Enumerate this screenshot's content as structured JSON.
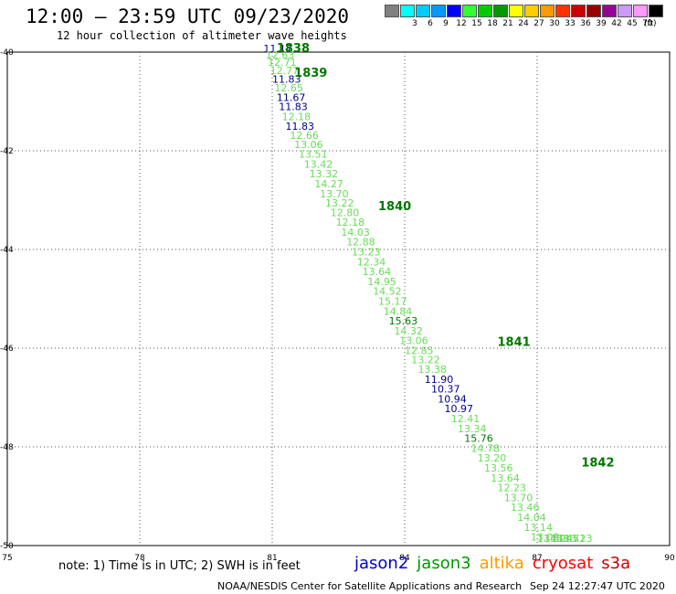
{
  "header": {
    "title": "12:00 – 23:59 UTC 09/23/2020",
    "subtitle": "12 hour collection of altimeter wave heights"
  },
  "colorbar": {
    "unit": "(ft)",
    "bins": [
      {
        "color": "#808080",
        "label": ""
      },
      {
        "color": "#00ffff",
        "label": "3"
      },
      {
        "color": "#00ccff",
        "label": "6"
      },
      {
        "color": "#0099ff",
        "label": "9"
      },
      {
        "color": "#0000ff",
        "label": "12"
      },
      {
        "color": "#33ff33",
        "label": "15"
      },
      {
        "color": "#00cc00",
        "label": "18"
      },
      {
        "color": "#009900",
        "label": "21"
      },
      {
        "color": "#ffff00",
        "label": "24"
      },
      {
        "color": "#ffcc00",
        "label": "27"
      },
      {
        "color": "#ff9900",
        "label": "30"
      },
      {
        "color": "#ff3300",
        "label": "33"
      },
      {
        "color": "#cc0000",
        "label": "36"
      },
      {
        "color": "#990000",
        "label": "39"
      },
      {
        "color": "#990099",
        "label": "42"
      },
      {
        "color": "#cc99ff",
        "label": "45"
      },
      {
        "color": "#ff99ff",
        "label": "70"
      },
      {
        "color": "#000000",
        "label": ""
      }
    ]
  },
  "chart_data": {
    "type": "scatter",
    "title": "12:00 – 23:59 UTC 09/23/2020",
    "subtitle": "12 hour collection of altimeter wave heights",
    "xlim": [
      75,
      90
    ],
    "ylim": [
      -50,
      -40
    ],
    "xticks": [
      75,
      78,
      81,
      84,
      87,
      90
    ],
    "yticks": [
      -40,
      -42,
      -44,
      -46,
      -48,
      -50
    ],
    "grid": true,
    "colors": {
      "jason2": "#00008b",
      "jason3_light": "#66dd55",
      "time": "#007700"
    },
    "time_labels": [
      {
        "label": "1838",
        "x": 81.1,
        "y": -40.0
      },
      {
        "label": "1839",
        "x": 81.5,
        "y": -40.5
      },
      {
        "label": "1840",
        "x": 83.4,
        "y": -43.2
      },
      {
        "label": "1841",
        "x": 86.1,
        "y": -45.95
      },
      {
        "label": "1842",
        "x": 88.0,
        "y": -48.4
      }
    ],
    "points": [
      {
        "x": 80.8,
        "y": -40.0,
        "swh": "11.17",
        "sat": "jason2"
      },
      {
        "x": 80.85,
        "y": -40.13,
        "swh": "12.63",
        "sat": "jason3"
      },
      {
        "x": 80.9,
        "y": -40.28,
        "swh": "12.71",
        "sat": "jason3"
      },
      {
        "x": 80.95,
        "y": -40.44,
        "swh": "12.77",
        "sat": "jason3"
      },
      {
        "x": 81.0,
        "y": -40.62,
        "swh": "11.83",
        "sat": "jason2"
      },
      {
        "x": 81.05,
        "y": -40.8,
        "swh": "12.65",
        "sat": "jason3"
      },
      {
        "x": 81.1,
        "y": -40.99,
        "swh": "11.67",
        "sat": "jason2"
      },
      {
        "x": 81.15,
        "y": -41.18,
        "swh": "11.83",
        "sat": "jason2"
      },
      {
        "x": 81.22,
        "y": -41.38,
        "swh": "12.18",
        "sat": "jason3"
      },
      {
        "x": 81.3,
        "y": -41.57,
        "swh": "11.83",
        "sat": "jason2"
      },
      {
        "x": 81.4,
        "y": -41.76,
        "swh": "12.66",
        "sat": "jason3"
      },
      {
        "x": 81.5,
        "y": -41.94,
        "swh": "13.06",
        "sat": "jason3"
      },
      {
        "x": 81.6,
        "y": -42.14,
        "swh": "13.51",
        "sat": "jason3"
      },
      {
        "x": 81.72,
        "y": -42.34,
        "swh": "13.42",
        "sat": "jason3"
      },
      {
        "x": 81.84,
        "y": -42.54,
        "swh": "13.32",
        "sat": "jason3"
      },
      {
        "x": 81.96,
        "y": -42.74,
        "swh": "14.27",
        "sat": "jason3"
      },
      {
        "x": 82.08,
        "y": -42.94,
        "swh": "13.70",
        "sat": "jason3"
      },
      {
        "x": 82.2,
        "y": -43.13,
        "swh": "13.22",
        "sat": "jason3"
      },
      {
        "x": 82.32,
        "y": -43.32,
        "swh": "12.80",
        "sat": "jason3"
      },
      {
        "x": 82.44,
        "y": -43.52,
        "swh": "12.18",
        "sat": "jason3"
      },
      {
        "x": 82.56,
        "y": -43.72,
        "swh": "14.03",
        "sat": "jason3"
      },
      {
        "x": 82.68,
        "y": -43.92,
        "swh": "12.88",
        "sat": "jason3"
      },
      {
        "x": 82.8,
        "y": -44.12,
        "swh": "13.23",
        "sat": "jason3"
      },
      {
        "x": 82.92,
        "y": -44.32,
        "swh": "12.34",
        "sat": "jason3"
      },
      {
        "x": 83.04,
        "y": -44.52,
        "swh": "13.64",
        "sat": "jason3"
      },
      {
        "x": 83.16,
        "y": -44.72,
        "swh": "14.95",
        "sat": "jason3"
      },
      {
        "x": 83.28,
        "y": -44.92,
        "swh": "14.52",
        "sat": "jason3"
      },
      {
        "x": 83.4,
        "y": -45.12,
        "swh": "15.17",
        "sat": "jason3"
      },
      {
        "x": 83.52,
        "y": -45.32,
        "swh": "14.84",
        "sat": "jason3"
      },
      {
        "x": 83.64,
        "y": -45.52,
        "swh": "15.63",
        "sat": "jason3_dark"
      },
      {
        "x": 83.76,
        "y": -45.72,
        "swh": "14.32",
        "sat": "jason3"
      },
      {
        "x": 83.88,
        "y": -45.92,
        "swh": "13.06",
        "sat": "jason3"
      },
      {
        "x": 84.0,
        "y": -46.12,
        "swh": "12.85",
        "sat": "jason3"
      },
      {
        "x": 84.15,
        "y": -46.31,
        "swh": "13.22",
        "sat": "jason3"
      },
      {
        "x": 84.3,
        "y": -46.5,
        "swh": "13.38",
        "sat": "jason3"
      },
      {
        "x": 84.45,
        "y": -46.7,
        "swh": "11.90",
        "sat": "jason2"
      },
      {
        "x": 84.6,
        "y": -46.9,
        "swh": "10.37",
        "sat": "jason2"
      },
      {
        "x": 84.75,
        "y": -47.1,
        "swh": "10.94",
        "sat": "jason2"
      },
      {
        "x": 84.9,
        "y": -47.3,
        "swh": "10.97",
        "sat": "jason2"
      },
      {
        "x": 85.05,
        "y": -47.5,
        "swh": "12.41",
        "sat": "jason3"
      },
      {
        "x": 85.2,
        "y": -47.7,
        "swh": "13.34",
        "sat": "jason3"
      },
      {
        "x": 85.35,
        "y": -47.9,
        "swh": "15.76",
        "sat": "jason3_dark"
      },
      {
        "x": 85.5,
        "y": -48.1,
        "swh": "14.78",
        "sat": "jason3"
      },
      {
        "x": 85.65,
        "y": -48.3,
        "swh": "13.20",
        "sat": "jason3"
      },
      {
        "x": 85.8,
        "y": -48.5,
        "swh": "13.56",
        "sat": "jason3"
      },
      {
        "x": 85.95,
        "y": -48.7,
        "swh": "13.64",
        "sat": "jason3"
      },
      {
        "x": 86.1,
        "y": -48.9,
        "swh": "12.23",
        "sat": "jason3"
      },
      {
        "x": 86.25,
        "y": -49.1,
        "swh": "13.70",
        "sat": "jason3"
      },
      {
        "x": 86.4,
        "y": -49.3,
        "swh": "13.46",
        "sat": "jason3"
      },
      {
        "x": 86.55,
        "y": -49.5,
        "swh": "14.04",
        "sat": "jason3"
      },
      {
        "x": 86.7,
        "y": -49.7,
        "swh": "13.14",
        "sat": "jason3"
      },
      {
        "x": 86.85,
        "y": -49.9,
        "swh": "13.08",
        "sat": "jason3"
      },
      {
        "x": 87.0,
        "y": -50.1,
        "swh": "13.80",
        "sat": "jason3"
      },
      {
        "x": 87.15,
        "y": -50.3,
        "swh": "14.24",
        "sat": "jason3"
      },
      {
        "x": 87.3,
        "y": -50.5,
        "swh": "13.45",
        "sat": "jason3"
      },
      {
        "x": 87.45,
        "y": -50.7,
        "swh": "13.71",
        "sat": "jason3"
      },
      {
        "x": 87.6,
        "y": -50.9,
        "swh": "13.23",
        "sat": "jason3"
      }
    ]
  },
  "legend": {
    "items": [
      {
        "label": "jason2",
        "color": "#0000cc"
      },
      {
        "label": "jason3",
        "color": "#009900"
      },
      {
        "label": "altika",
        "color": "#ff9900"
      },
      {
        "label": "cryosat",
        "color": "#ff0000"
      },
      {
        "label": "s3a",
        "color": "#cc0000"
      }
    ]
  },
  "footer": {
    "note": "note: 1) Time is in UTC; 2) SWH is in feet",
    "credit": "NOAA/NESDIS Center for Satellite Applications and Research",
    "timestamp": "Sep 24 12:27:47 UTC 2020"
  }
}
